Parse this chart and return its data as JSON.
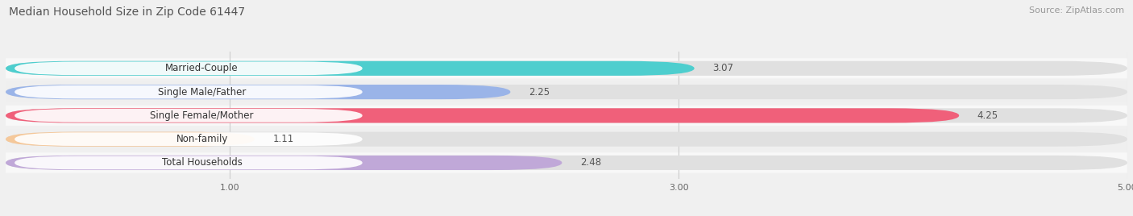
{
  "title": "Median Household Size in Zip Code 61447",
  "source": "Source: ZipAtlas.com",
  "categories": [
    "Married-Couple",
    "Single Male/Father",
    "Single Female/Mother",
    "Non-family",
    "Total Households"
  ],
  "values": [
    3.07,
    2.25,
    4.25,
    1.11,
    2.48
  ],
  "bar_colors": [
    "#4ecece",
    "#9ab4e8",
    "#f0607a",
    "#f5c89a",
    "#c0a8d8"
  ],
  "xlim": [
    0,
    5.0
  ],
  "xticks": [
    1.0,
    3.0,
    5.0
  ],
  "title_fontsize": 10,
  "source_fontsize": 8,
  "label_fontsize": 8.5,
  "value_fontsize": 8.5,
  "background_color": "#f0f0f0",
  "bar_bg_color": "#e0e0e0",
  "bar_height": 0.62
}
